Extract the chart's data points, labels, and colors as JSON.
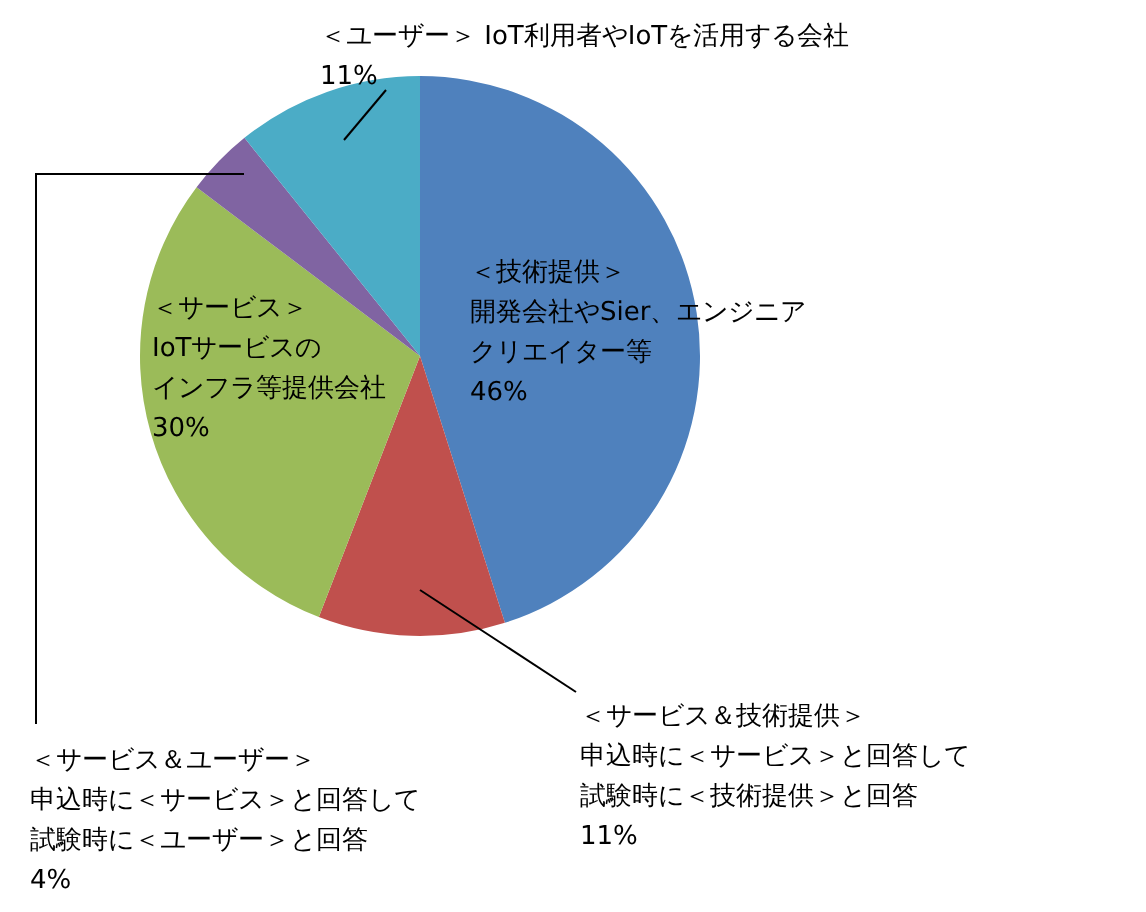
{
  "chart_data": {
    "type": "pie",
    "categories": [
      "＜技術提供＞開発会社やSier、エンジニアクリエイター等",
      "＜サービス＆技術提供＞申込時に＜サービス＞と回答して試験時に＜技術提供＞と回答",
      "＜サービス＞IoTサービスのインフラ等提供会社",
      "＜サービス＆ユーザー＞申込時に＜サービス＞と回答して試験時に＜ユーザー＞と回答",
      "＜ユーザー＞ IoT利用者やIoTを活用する会社"
    ],
    "values": [
      46,
      11,
      30,
      4,
      11
    ],
    "value_labels": [
      "46%",
      "11%",
      "30%",
      "4%",
      "11%"
    ],
    "colors": [
      "#4f81bd",
      "#c0504d",
      "#9bbb59",
      "#8064a2",
      "#4bacc6"
    ],
    "legend": false
  }
}
